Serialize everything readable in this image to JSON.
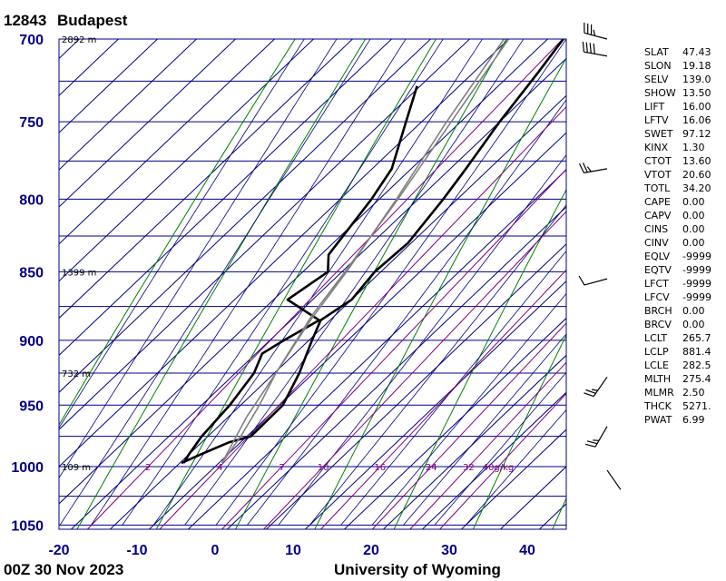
{
  "header": {
    "station_id": "12843",
    "station_name": "Budapest"
  },
  "footer": {
    "time_label": "00Z 30 Nov 2023",
    "source_label": "University of Wyoming"
  },
  "colors": {
    "axis": "#000080",
    "grid": "#000080",
    "mixing_ratio": "#800080",
    "dry_adiabat": "#008000",
    "moist_adiabat": "#000080",
    "temperature": "#000000",
    "parcel": "#808080",
    "wind": "#000000"
  },
  "chart_data": {
    "type": "line",
    "subtype": "skew-t log-p sounding",
    "xlim": [
      -20,
      45
    ],
    "ylim": [
      1050,
      700
    ],
    "yscale": "log",
    "x_ticks": [
      "-20",
      "-10",
      "0",
      "10",
      "20",
      "30",
      "40"
    ],
    "y_ticks": [
      "700",
      "750",
      "800",
      "850",
      "900",
      "950",
      "1000",
      "1050"
    ],
    "height_labels": [
      {
        "p": 700,
        "text": "2892 m"
      },
      {
        "p": 850,
        "text": "1399 m"
      },
      {
        "p": 925,
        "text": "732 m"
      },
      {
        "p": 1000,
        "text": "109 m"
      }
    ],
    "mixing_ratio_labels": [
      "2",
      "4",
      "7",
      "10",
      "16",
      "24",
      "32",
      "40g/kg"
    ],
    "mixing_ratio_values": [
      2,
      4,
      7,
      10,
      16,
      24,
      32,
      40
    ],
    "series": [
      {
        "role": "temperature",
        "points": [
          [
            997,
            -4.5
          ],
          [
            990,
            -5.0
          ],
          [
            975,
            -5.8
          ],
          [
            950,
            -6.4
          ],
          [
            925,
            -7.6
          ],
          [
            910,
            -9.2
          ],
          [
            900,
            -8.2
          ],
          [
            885,
            -6.4
          ],
          [
            870,
            -13.2
          ],
          [
            850,
            -11.8
          ],
          [
            838,
            -14.0
          ],
          [
            800,
            -16.0
          ],
          [
            780,
            -17.5
          ],
          [
            750,
            -22.0
          ],
          [
            728,
            -25.4
          ]
        ]
      },
      {
        "role": "dewpoint",
        "points": [
          [
            997,
            -4.8
          ],
          [
            990,
            -3.5
          ],
          [
            980,
            -1.5
          ],
          [
            975,
            0.5
          ],
          [
            950,
            0.4
          ],
          [
            925,
            -1.8
          ],
          [
            900,
            -4.6
          ],
          [
            885,
            -6.2
          ],
          [
            870,
            -5.0
          ],
          [
            850,
            -5.8
          ],
          [
            830,
            -5.4
          ],
          [
            800,
            -6.8
          ],
          [
            780,
            -8.0
          ],
          [
            750,
            -10.0
          ],
          [
            720,
            -11.7
          ],
          [
            700,
            -13.0
          ]
        ]
      },
      {
        "role": "parcel",
        "points": [
          [
            997,
            0.4
          ],
          [
            975,
            -0.8
          ],
          [
            950,
            -2.6
          ],
          [
            925,
            -4.8
          ],
          [
            900,
            -6.6
          ],
          [
            881,
            -8.0
          ],
          [
            850,
            -9.6
          ],
          [
            800,
            -12.6
          ],
          [
            750,
            -16.2
          ],
          [
            700,
            -20.0
          ]
        ]
      },
      {
        "role": "environment_reference",
        "points": [
          [
            997,
            0.4
          ],
          [
            960,
            -2.6
          ],
          [
            925,
            -4.8
          ],
          [
            885,
            -7.5
          ],
          [
            850,
            -9.4
          ],
          [
            800,
            -12.8
          ],
          [
            750,
            -16.8
          ],
          [
            700,
            -20.6
          ]
        ]
      }
    ],
    "wind_barbs": [
      {
        "p": 700,
        "dir": 285,
        "speed_kt": 35
      },
      {
        "p": 710,
        "dir": 280,
        "speed_kt": 40
      },
      {
        "p": 780,
        "dir": 260,
        "speed_kt": 25
      },
      {
        "p": 855,
        "dir": 255,
        "speed_kt": 10
      },
      {
        "p": 928,
        "dir": 215,
        "speed_kt": 25
      },
      {
        "p": 967,
        "dir": 210,
        "speed_kt": 25
      },
      {
        "p": 1003,
        "dir": 145,
        "speed_kt": 0
      }
    ]
  },
  "indices": [
    {
      "name": "SLAT",
      "value": "47.43"
    },
    {
      "name": "SLON",
      "value": "19.18"
    },
    {
      "name": "SELV",
      "value": "139.0"
    },
    {
      "name": "SHOW",
      "value": "13.50"
    },
    {
      "name": "LIFT",
      "value": "16.00"
    },
    {
      "name": "LFTV",
      "value": "16.06"
    },
    {
      "name": "SWET",
      "value": "97.12"
    },
    {
      "name": "KINX",
      "value": "1.30"
    },
    {
      "name": "CTOT",
      "value": "13.60"
    },
    {
      "name": "VTOT",
      "value": "20.60"
    },
    {
      "name": "TOTL",
      "value": "34.20"
    },
    {
      "name": "CAPE",
      "value": "0.00"
    },
    {
      "name": "CAPV",
      "value": "0.00"
    },
    {
      "name": "CINS",
      "value": "0.00"
    },
    {
      "name": "CINV",
      "value": "0.00"
    },
    {
      "name": "EQLV",
      "value": "-9999"
    },
    {
      "name": "EQTV",
      "value": "-9999"
    },
    {
      "name": "LFCT",
      "value": "-9999"
    },
    {
      "name": "LFCV",
      "value": "-9999"
    },
    {
      "name": "BRCH",
      "value": "0.00"
    },
    {
      "name": "BRCV",
      "value": "0.00"
    },
    {
      "name": "LCLT",
      "value": "265.7"
    },
    {
      "name": "LCLP",
      "value": "881.4"
    },
    {
      "name": "LCLE",
      "value": "282.5"
    },
    {
      "name": "MLTH",
      "value": "275.4"
    },
    {
      "name": "MLMR",
      "value": "2.50"
    },
    {
      "name": "THCK",
      "value": "5271."
    },
    {
      "name": "PWAT",
      "value": "6.99"
    }
  ]
}
